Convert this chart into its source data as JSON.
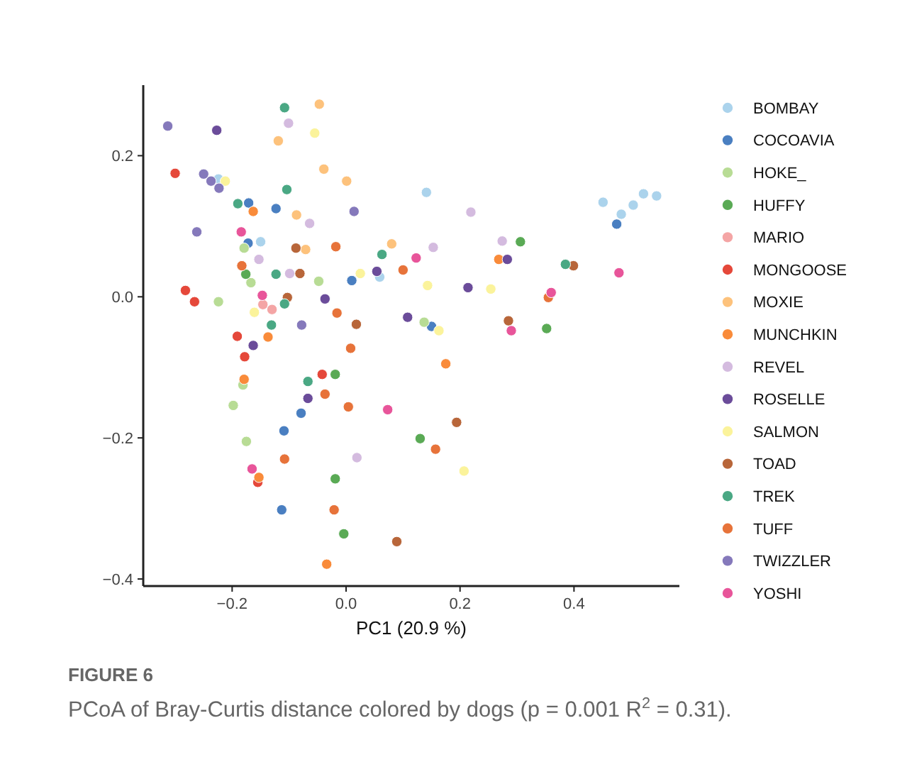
{
  "chart_data": {
    "type": "scatter",
    "title": "FIGURE 6",
    "subtitle": "PCoA of Bray-Curtis distance colored by dogs (p = 0.001 R$^{2}$ = 0.31).",
    "xlabel": "PC1 (20.9 %)",
    "xlim": [
      -0.356,
      0.585
    ],
    "ylim": [
      -0.41,
      0.3
    ],
    "xticks": [
      -0.2,
      {
        "value": 0,
        "label": "0.0"
      },
      0.2,
      0.4
    ],
    "yticks": [
      -0.4,
      -0.2,
      {
        "value": 0,
        "label": "0.0"
      },
      0.2
    ],
    "grid": false,
    "legend": "right",
    "marker": "circle",
    "series": [
      {
        "name": "BOMBAY",
        "color": "#abd3ec",
        "x": [
          -0.224,
          -0.15,
          0.141,
          0.059,
          0.451,
          0.483,
          0.504,
          0.522,
          0.545
        ],
        "values": [
          0.167,
          0.078,
          0.148,
          0.028,
          0.134,
          0.117,
          0.13,
          0.146,
          0.143
        ]
      },
      {
        "name": "COCOAVIA",
        "color": "#4a7fc1",
        "x": [
          -0.171,
          -0.123,
          -0.172,
          0.01,
          0.475,
          0.15,
          -0.079,
          -0.109,
          -0.113
        ],
        "values": [
          0.133,
          0.125,
          0.076,
          0.023,
          0.103,
          -0.042,
          -0.165,
          -0.19,
          -0.302
        ]
      },
      {
        "name": "HOKE_",
        "color": "#b8dc95",
        "x": [
          -0.179,
          -0.167,
          -0.048,
          -0.224,
          0.137,
          -0.181,
          -0.198,
          -0.175
        ],
        "values": [
          0.069,
          0.02,
          0.022,
          -0.007,
          -0.036,
          -0.125,
          -0.154,
          -0.205
        ]
      },
      {
        "name": "HUFFY",
        "color": "#5aaa55",
        "x": [
          -0.176,
          0.306,
          0.352,
          -0.019,
          0.13,
          -0.019,
          -0.004
        ],
        "values": [
          0.032,
          0.078,
          -0.045,
          -0.11,
          -0.201,
          -0.258,
          -0.336
        ]
      },
      {
        "name": "MARIO",
        "color": "#f4a5a5",
        "x": [
          -0.146,
          -0.13
        ],
        "values": [
          -0.011,
          -0.018
        ]
      },
      {
        "name": "MONGOOSE",
        "color": "#e5483a",
        "x": [
          -0.3,
          -0.282,
          -0.266,
          -0.191,
          -0.178,
          -0.042,
          -0.155
        ],
        "values": [
          0.175,
          0.009,
          -0.007,
          -0.056,
          -0.085,
          -0.11,
          -0.263
        ]
      },
      {
        "name": "MOXIE",
        "color": "#fdc27c",
        "x": [
          -0.047,
          -0.119,
          -0.039,
          0.001,
          -0.087,
          -0.071,
          0.08
        ],
        "values": [
          0.273,
          0.221,
          0.181,
          0.164,
          0.116,
          0.067,
          0.075
        ]
      },
      {
        "name": "MUNCHKIN",
        "color": "#f98b3a",
        "x": [
          -0.163,
          -0.137,
          -0.179,
          -0.153,
          -0.034,
          0.268,
          0.175
        ],
        "values": [
          0.121,
          -0.057,
          -0.117,
          -0.256,
          -0.379,
          0.053,
          -0.095
        ]
      },
      {
        "name": "REVEL",
        "color": "#d4bbdf",
        "x": [
          -0.101,
          -0.064,
          -0.153,
          -0.099,
          0.219,
          0.153,
          0.274,
          0.019
        ],
        "values": [
          0.246,
          0.104,
          0.053,
          0.033,
          0.12,
          0.07,
          0.079,
          -0.228
        ]
      },
      {
        "name": "ROSELLE",
        "color": "#6b4c9a",
        "x": [
          -0.227,
          0.054,
          -0.037,
          -0.163,
          -0.067,
          0.283,
          0.214,
          0.108
        ],
        "values": [
          0.236,
          0.036,
          -0.003,
          -0.069,
          -0.144,
          0.053,
          0.013,
          -0.029
        ]
      },
      {
        "name": "SALMON",
        "color": "#fbf39b",
        "x": [
          -0.055,
          -0.212,
          0.025,
          -0.161,
          0.143,
          0.254,
          0.163,
          0.207
        ],
        "values": [
          0.232,
          0.164,
          0.033,
          -0.022,
          0.016,
          0.011,
          -0.048,
          -0.247
        ]
      },
      {
        "name": "TOAD",
        "color": "#b8663a",
        "x": [
          -0.088,
          -0.081,
          -0.103,
          0.018,
          0.399,
          0.285,
          0.194,
          0.089
        ],
        "values": [
          0.069,
          0.033,
          -0.001,
          -0.039,
          0.044,
          -0.034,
          -0.178,
          -0.347
        ]
      },
      {
        "name": "TREK",
        "color": "#4aa884",
        "x": [
          -0.108,
          -0.104,
          -0.123,
          -0.108,
          -0.131,
          -0.067,
          0.063,
          0.385,
          -0.19
        ],
        "values": [
          0.268,
          0.152,
          0.032,
          -0.01,
          -0.04,
          -0.12,
          0.06,
          0.046,
          0.132
        ]
      },
      {
        "name": "TUFF",
        "color": "#e7733a",
        "x": [
          -0.018,
          -0.183,
          -0.016,
          0.008,
          -0.037,
          0.004,
          -0.108,
          -0.021,
          0.1,
          0.355,
          0.157
        ],
        "values": [
          0.071,
          0.044,
          -0.023,
          -0.073,
          -0.138,
          -0.156,
          -0.23,
          -0.302,
          0.038,
          -0.001,
          -0.216
        ]
      },
      {
        "name": "TWIZZLER",
        "color": "#8579bb",
        "x": [
          -0.313,
          -0.25,
          -0.237,
          -0.223,
          0.014,
          -0.262,
          -0.078
        ],
        "values": [
          0.242,
          0.174,
          0.164,
          0.154,
          0.121,
          0.092,
          -0.04
        ]
      },
      {
        "name": "YOSHI",
        "color": "#e8559a",
        "x": [
          -0.184,
          -0.147,
          0.123,
          0.479,
          0.36,
          0.29,
          -0.165,
          0.073
        ],
        "values": [
          0.092,
          0.002,
          0.055,
          0.034,
          0.006,
          -0.048,
          -0.244,
          -0.16
        ]
      }
    ]
  }
}
